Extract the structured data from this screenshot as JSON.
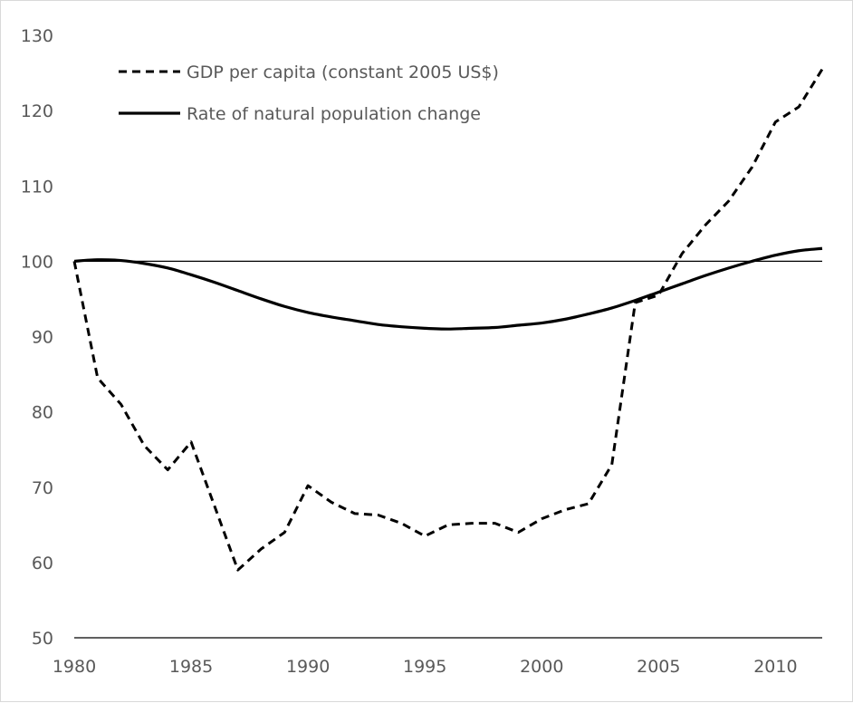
{
  "chart_data": {
    "type": "line",
    "title": "",
    "xlabel": "",
    "ylabel": "",
    "xlim": [
      1980,
      2012
    ],
    "ylim": [
      50,
      130
    ],
    "y_ticks": [
      "50",
      "60",
      "70",
      "80",
      "90",
      "100",
      "110",
      "120",
      "130"
    ],
    "x_ticks": [
      "1980",
      "1985",
      "1990",
      "1995",
      "2000",
      "2005",
      "2010"
    ],
    "grid": false,
    "reference_line": 100,
    "legend": "top-left",
    "colors": {
      "line": "#000000",
      "text": "#595959",
      "frame": "#d9d9d9"
    },
    "x": [
      1980,
      1981,
      1982,
      1983,
      1984,
      1985,
      1986,
      1987,
      1988,
      1989,
      1990,
      1991,
      1992,
      1993,
      1994,
      1995,
      1996,
      1997,
      1998,
      1999,
      2000,
      2001,
      2002,
      2003,
      2004,
      2005,
      2006,
      2007,
      2008,
      2009,
      2010,
      2011,
      2012
    ],
    "series": [
      {
        "name": "GDP per capita (constant 2005 US$)",
        "style": "dashed",
        "values": [
          100,
          84.5,
          81,
          75.5,
          72.3,
          76,
          67.5,
          59,
          61.8,
          64,
          70.2,
          68,
          66.5,
          66.3,
          65.2,
          63.5,
          65,
          65.2,
          65.2,
          64,
          65.8,
          67,
          67.8,
          73,
          94.5,
          95.5,
          101,
          104.8,
          108,
          112.5,
          118.5,
          120.5,
          125.5
        ]
      },
      {
        "name": "Rate of natural population change",
        "style": "solid",
        "values": [
          100,
          100.2,
          100.1,
          99.7,
          99.1,
          98.2,
          97.2,
          96.1,
          95,
          94,
          93.2,
          92.6,
          92.1,
          91.6,
          91.3,
          91.1,
          91,
          91.1,
          91.2,
          91.5,
          91.8,
          92.3,
          93,
          93.8,
          94.8,
          95.9,
          97,
          98.1,
          99.1,
          100,
          100.8,
          101.4,
          101.7
        ]
      }
    ]
  }
}
